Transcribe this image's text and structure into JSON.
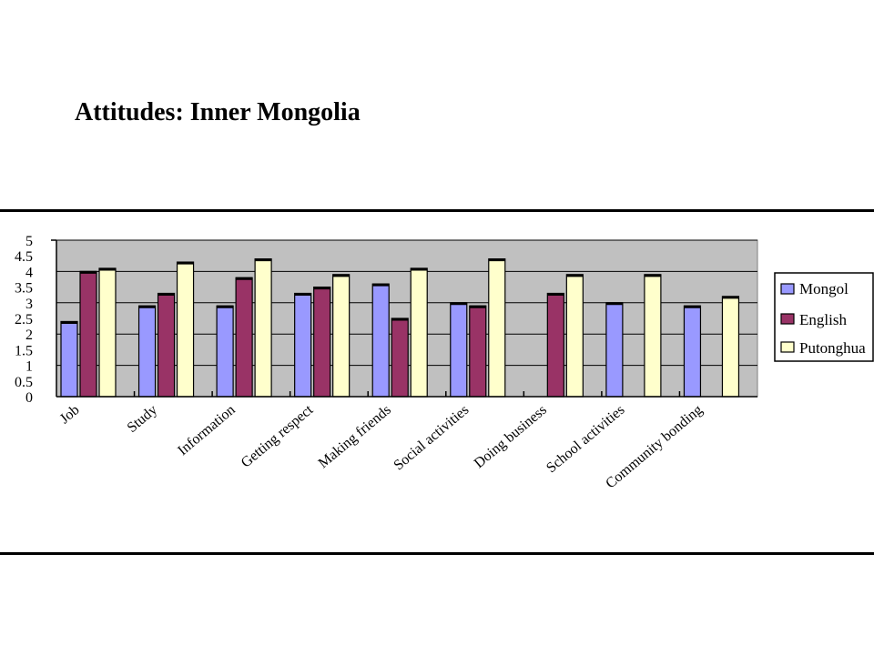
{
  "slide": {
    "title": "Attitudes: Inner Mongolia"
  },
  "colors": {
    "plot_background": "#c0c0c0",
    "gridline": "#000000",
    "Mongol": "#9999ff",
    "English": "#993366",
    "Putonghua": "#ffffcc"
  },
  "chart_data": {
    "type": "bar",
    "title": "",
    "xlabel": "",
    "ylabel": "",
    "ylim": [
      0,
      5
    ],
    "yticks": [
      0,
      0.5,
      1,
      1.5,
      2,
      2.5,
      3,
      3.5,
      4,
      4.5,
      5
    ],
    "ytick_labels": [
      "0",
      "0.5",
      "1",
      "1.5",
      "2",
      "2.5",
      "3",
      "3.5",
      "4",
      "4.5",
      "5"
    ],
    "grid": true,
    "legend_position": "right",
    "categories": [
      "Job",
      "Study",
      "Information",
      "Getting respect",
      "Making friends",
      "Social activities",
      "Doing business",
      "School activities",
      "Community bonding"
    ],
    "series": [
      {
        "name": "Mongol",
        "values": [
          2.4,
          2.9,
          2.9,
          3.3,
          3.6,
          3.0,
          null,
          3.0,
          2.9
        ]
      },
      {
        "name": "English",
        "values": [
          4.0,
          3.3,
          3.8,
          3.5,
          2.5,
          2.9,
          3.3,
          null,
          null
        ]
      },
      {
        "name": "Putonghua",
        "values": [
          4.1,
          4.3,
          4.4,
          3.9,
          4.1,
          4.4,
          3.9,
          3.9,
          3.2
        ]
      }
    ]
  }
}
